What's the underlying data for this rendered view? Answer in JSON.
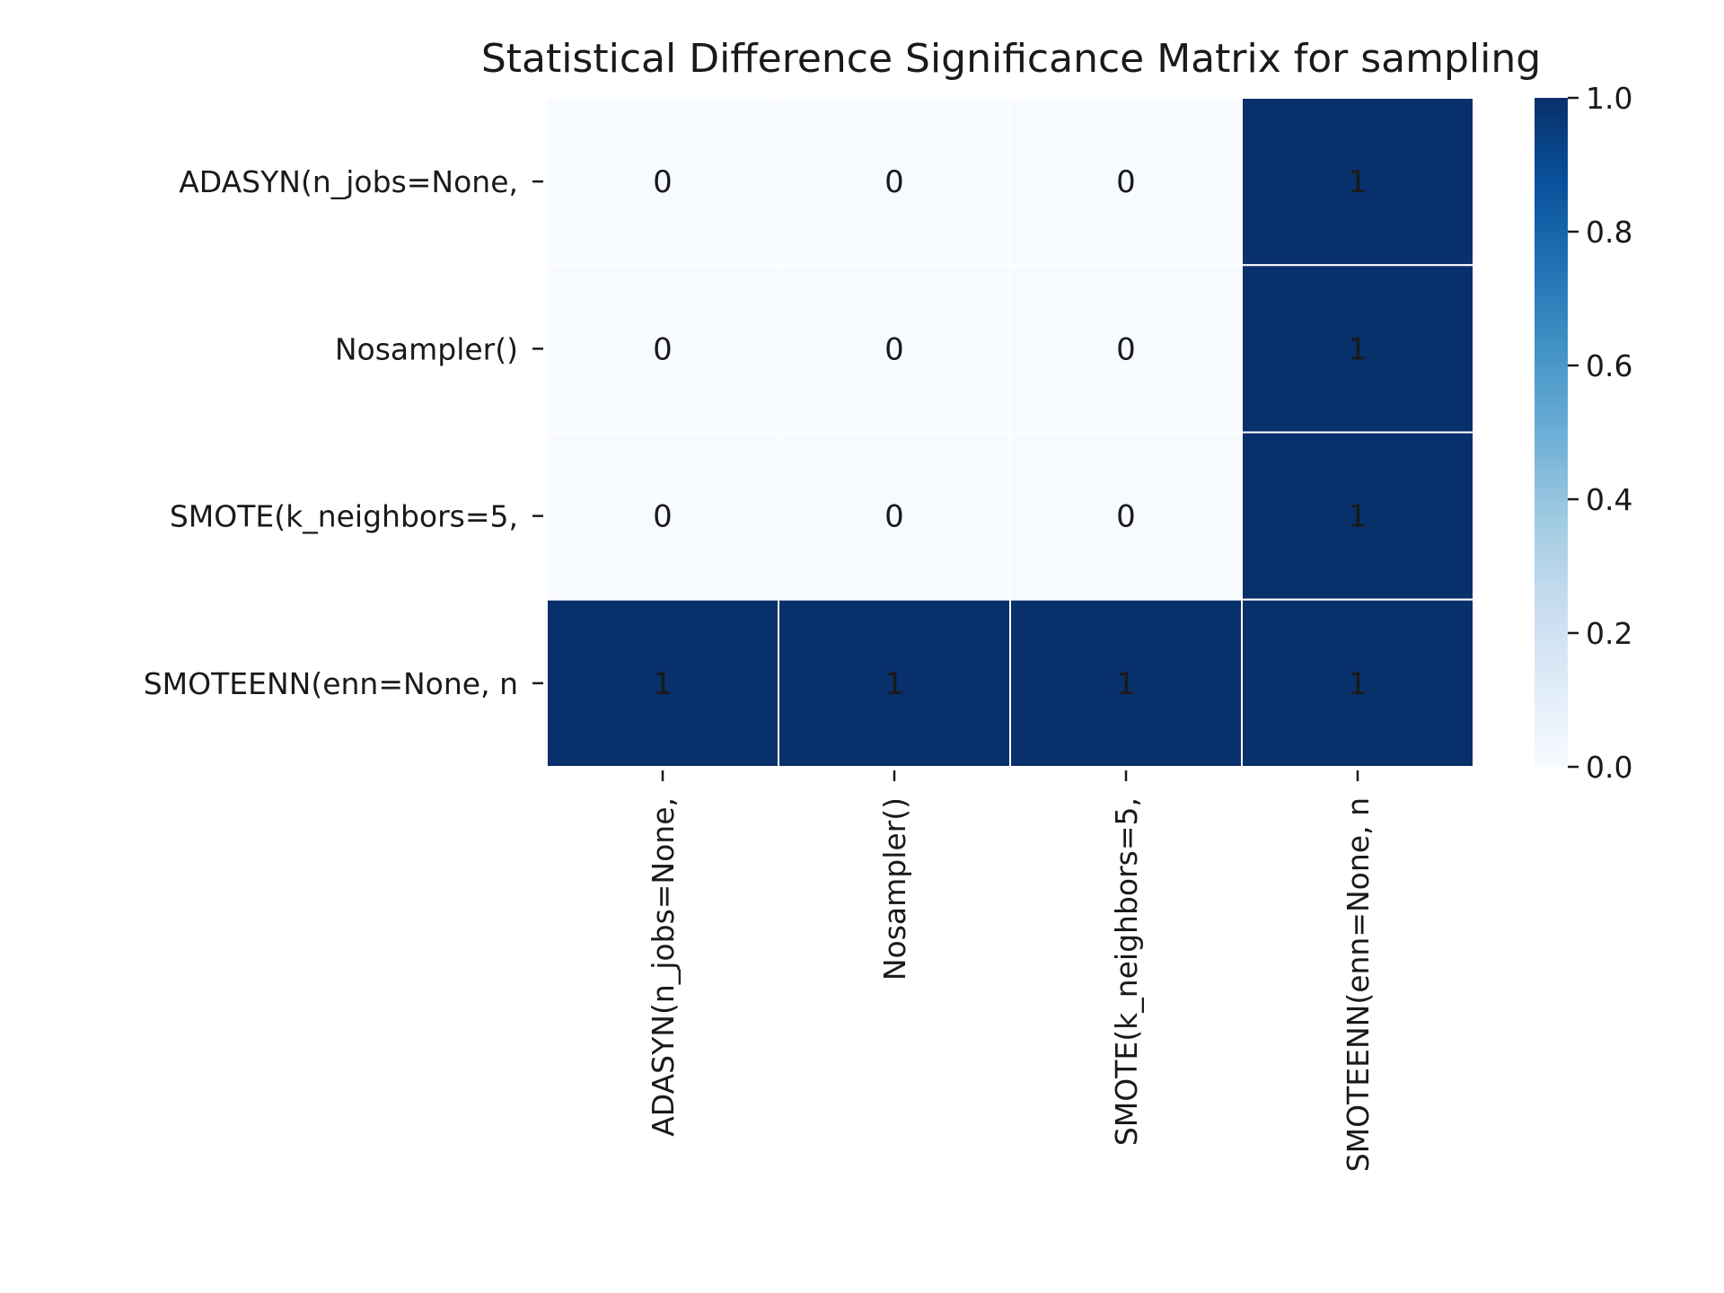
{
  "chart_data": {
    "type": "heatmap",
    "title": "Statistical Difference Significance Matrix for sampling",
    "xlabel": "",
    "ylabel": "",
    "x_categories": [
      "ADASYN(n_jobs=None,",
      "Nosampler()",
      "SMOTE(k_neighbors=5,",
      "SMOTEENN(enn=None, n"
    ],
    "y_categories": [
      "ADASYN(n_jobs=None,",
      "Nosampler()",
      "SMOTE(k_neighbors=5,",
      "SMOTEENN(enn=None, n"
    ],
    "values": [
      [
        0,
        0,
        0,
        1
      ],
      [
        0,
        0,
        0,
        1
      ],
      [
        0,
        0,
        0,
        1
      ],
      [
        1,
        1,
        1,
        1
      ]
    ],
    "value_labels": [
      [
        "0",
        "0",
        "0",
        "1"
      ],
      [
        "0",
        "0",
        "0",
        "1"
      ],
      [
        "0",
        "0",
        "0",
        "1"
      ],
      [
        "1",
        "1",
        "1",
        "1"
      ]
    ],
    "colorbar": {
      "range": [
        0.0,
        1.0
      ],
      "ticks": [
        0.0,
        0.2,
        0.4,
        0.6,
        0.8,
        1.0
      ],
      "tick_labels": [
        "0.0",
        "0.2",
        "0.4",
        "0.6",
        "0.8",
        "1.0"
      ],
      "colormap": "Blues",
      "low_color": "#f7fbff",
      "high_color": "#08306b"
    },
    "cell_border_color": "#ffffff",
    "annotation_color_dark_cell": "#ffffff",
    "annotation_color_light_cell": "#262626",
    "legend_position": "right",
    "grid": false
  }
}
